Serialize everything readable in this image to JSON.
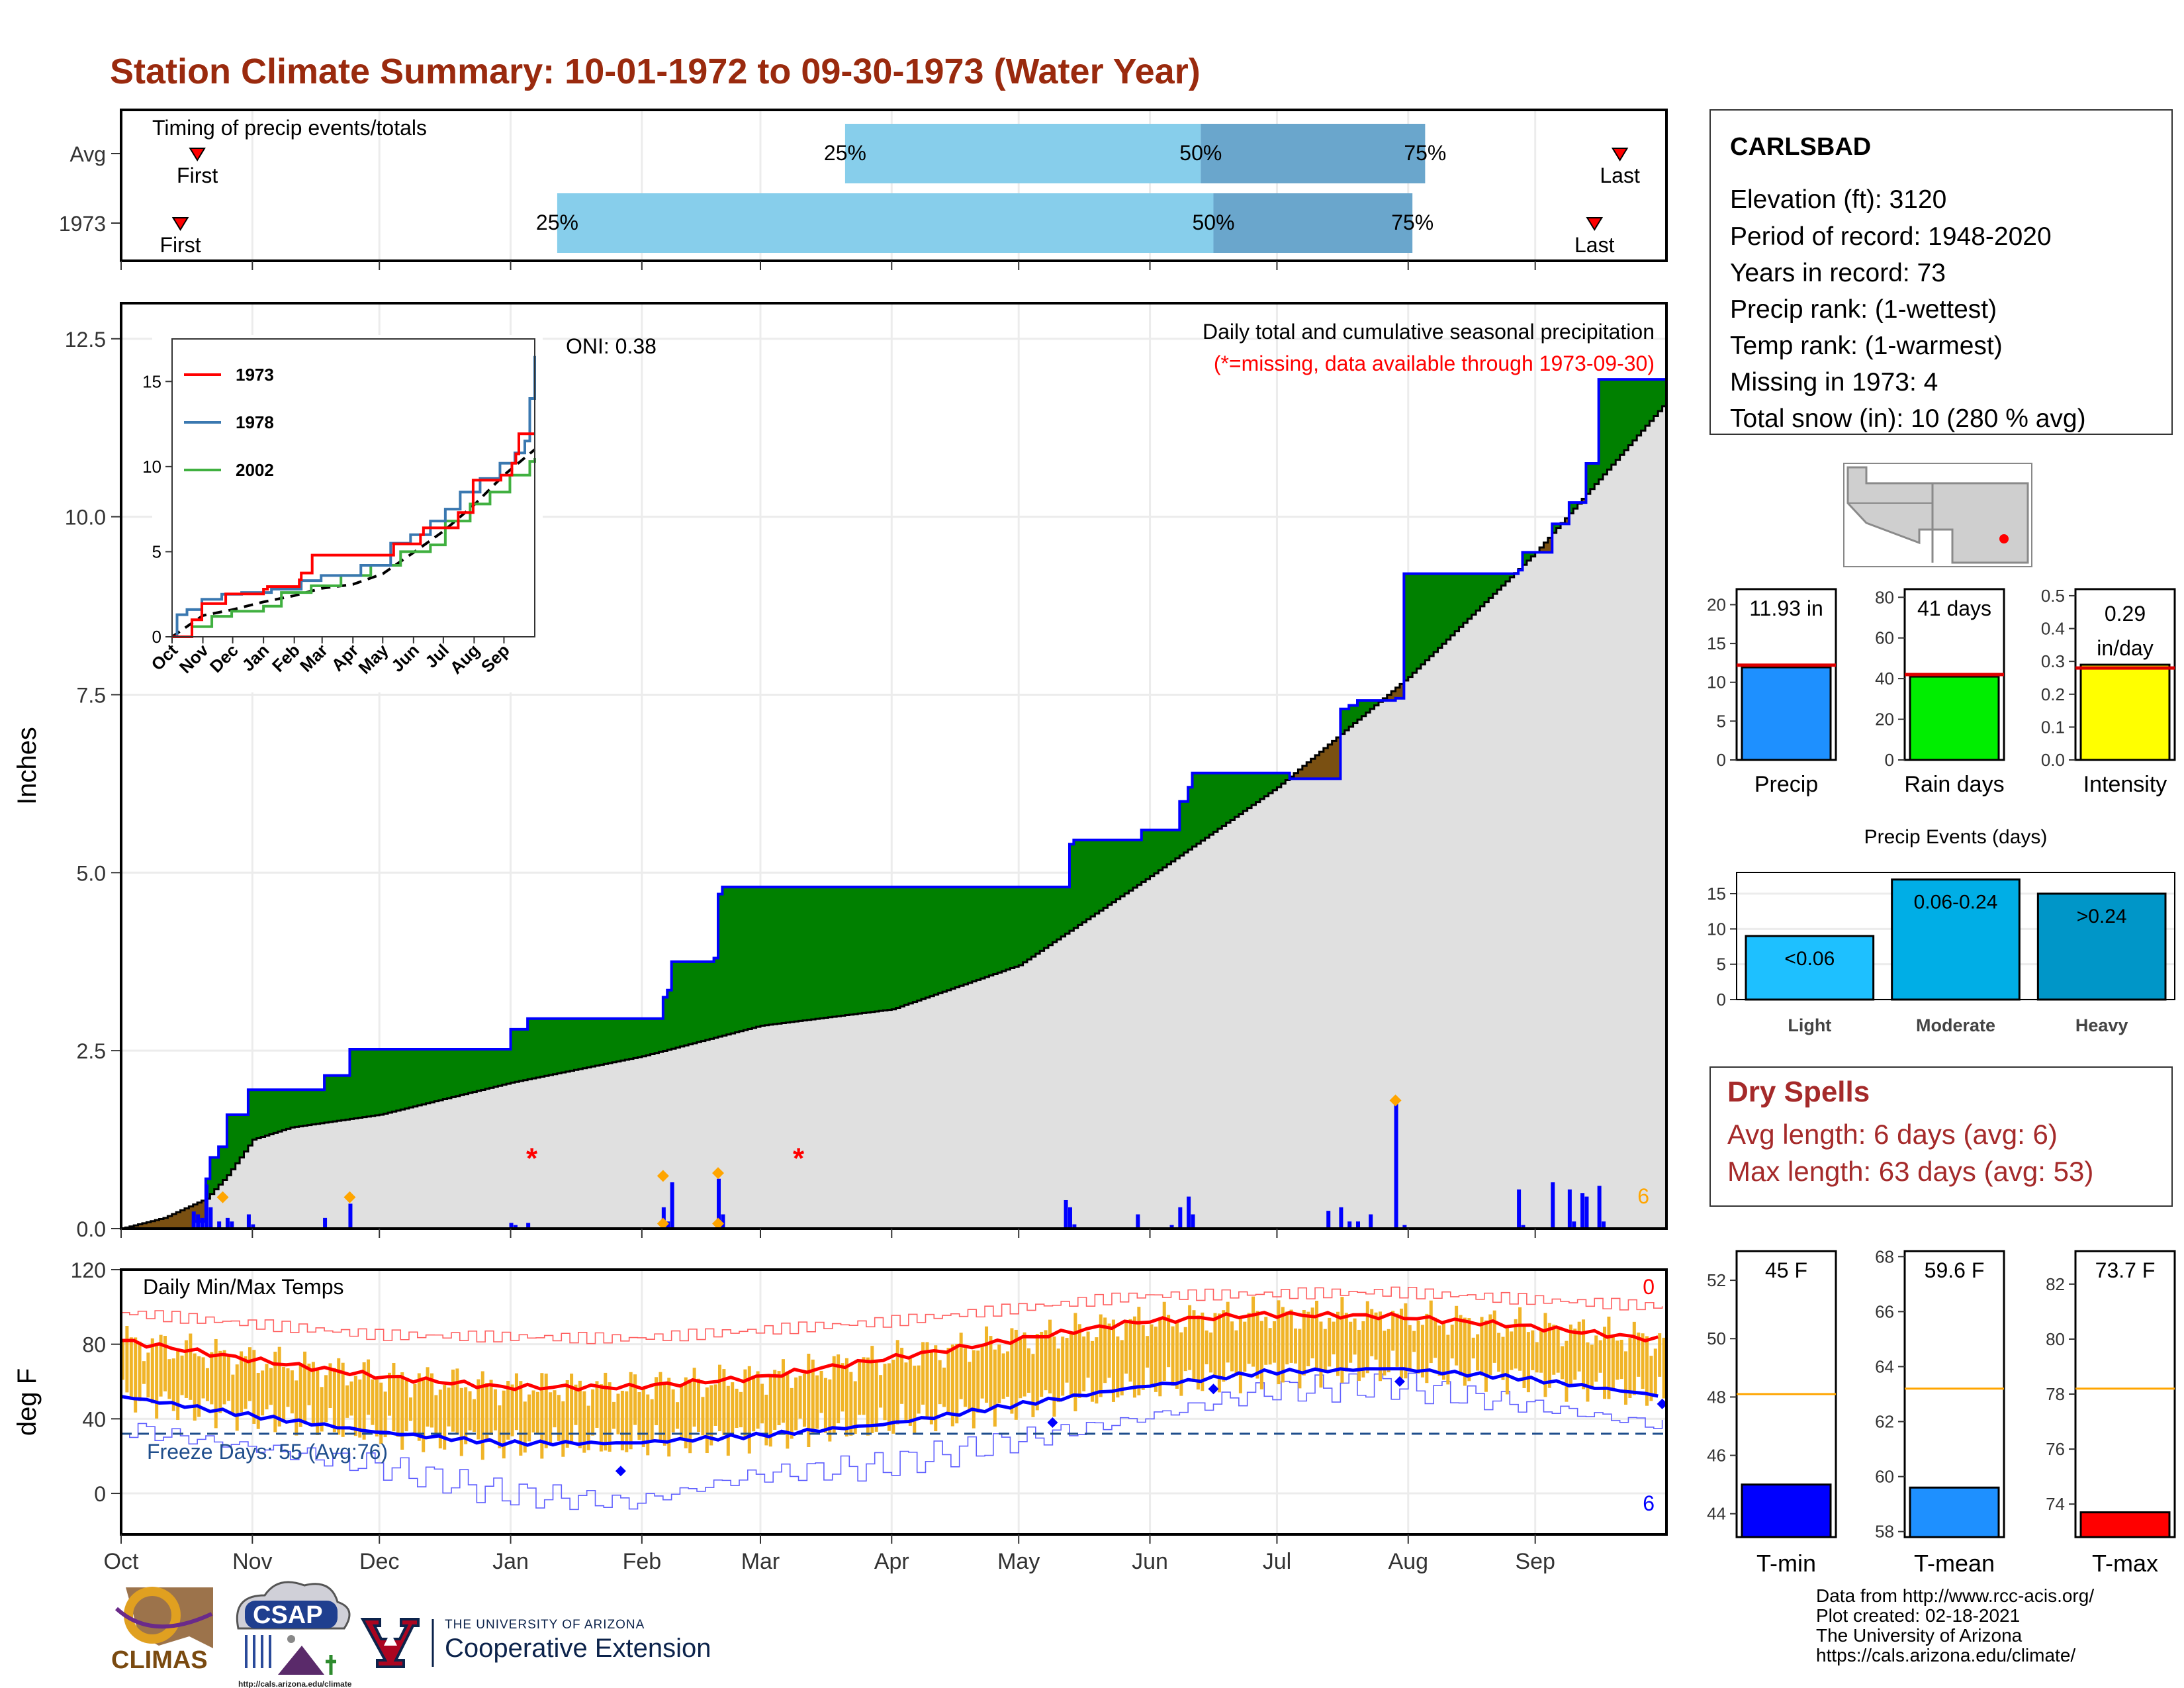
{
  "title": "Station Climate Summary: 10-01-1972 to 09-30-1973 (Water Year)",
  "colors": {
    "title": "#9a2a0e",
    "precip_green": "#008000",
    "precip_brown": "#7a5012",
    "cum_gray": "#e0e0e0",
    "blue_line": "#0000ff",
    "red_line": "#ff0000",
    "temp_bar": "#f0b428",
    "light_blue": "#87ceeb",
    "mid_blue": "#6aa6cc",
    "dry_red": "#a52a2a",
    "freeze_dash": "#1f4e8c"
  },
  "timing": {
    "label": "Timing of precip events/totals",
    "rows": [
      {
        "name": "Avg",
        "first": "First",
        "last": "Last",
        "p25": "25%",
        "p50": "50%",
        "p75": "75%",
        "first_day": 18,
        "q25_day": 171,
        "q50_day": 255,
        "q75_day": 308,
        "last_day": 354
      },
      {
        "name": "1973",
        "first": "First",
        "last": "Last",
        "p25": "25%",
        "p50": "50%",
        "p75": "75%",
        "first_day": 14,
        "q25_day": 103,
        "q50_day": 258,
        "q75_day": 305,
        "last_day": 348
      }
    ]
  },
  "precip_chart": {
    "ylabel": "Inches",
    "yticks": [
      "0.0",
      "2.5",
      "5.0",
      "7.5",
      "10.0",
      "12.5"
    ],
    "oni": "ONI: 0.38",
    "note1": "Daily total and cumulative seasonal precipitation",
    "note2": "(*=missing, data available through 1973-09-30)",
    "missing_count": "6",
    "ymax": 13,
    "missing_marks": [
      {
        "day": 97,
        "value": 1.0
      },
      {
        "day": 160,
        "value": 1.0
      }
    ],
    "cumulative_1973": [
      [
        0,
        0
      ],
      [
        17,
        0.1
      ],
      [
        20,
        0.7
      ],
      [
        21,
        1.0
      ],
      [
        23,
        1.15
      ],
      [
        25,
        1.6
      ],
      [
        30,
        1.95
      ],
      [
        48,
        2.15
      ],
      [
        54,
        2.52
      ],
      [
        84,
        2.52
      ],
      [
        92,
        2.8
      ],
      [
        96,
        2.95
      ],
      [
        122,
        2.95
      ],
      [
        128,
        3.25
      ],
      [
        129,
        3.35
      ],
      [
        130,
        3.75
      ],
      [
        140,
        3.8
      ],
      [
        141,
        4.7
      ],
      [
        142,
        4.8
      ],
      [
        223,
        4.8
      ],
      [
        224,
        5.4
      ],
      [
        225,
        5.46
      ],
      [
        240,
        5.46
      ],
      [
        241,
        5.6
      ],
      [
        248,
        5.6
      ],
      [
        250,
        6.0
      ],
      [
        252,
        6.2
      ],
      [
        253,
        6.4
      ],
      [
        275,
        6.4
      ],
      [
        276,
        6.32
      ],
      [
        285,
        6.32
      ],
      [
        288,
        7.3
      ],
      [
        290,
        7.35
      ],
      [
        292,
        7.42
      ],
      [
        301,
        7.45
      ],
      [
        303,
        9.2
      ],
      [
        330,
        9.25
      ],
      [
        331,
        9.5
      ],
      [
        338,
        9.9
      ],
      [
        342,
        10.2
      ],
      [
        346,
        10.75
      ],
      [
        349,
        11.93
      ],
      [
        365,
        11.93
      ]
    ],
    "average_cum": [
      [
        0,
        0
      ],
      [
        10,
        0.15
      ],
      [
        20,
        0.42
      ],
      [
        25,
        0.75
      ],
      [
        31,
        1.25
      ],
      [
        40,
        1.42
      ],
      [
        61,
        1.6
      ],
      [
        92,
        2.05
      ],
      [
        123,
        2.42
      ],
      [
        151,
        2.85
      ],
      [
        182,
        3.08
      ],
      [
        212,
        3.7
      ],
      [
        243,
        4.95
      ],
      [
        273,
        6.2
      ],
      [
        304,
        7.75
      ],
      [
        334,
        9.5
      ],
      [
        365,
        11.62
      ]
    ],
    "daily_bars": [
      [
        17,
        0.24
      ],
      [
        18,
        0.2
      ],
      [
        19,
        0.15
      ],
      [
        20,
        0.62
      ],
      [
        21,
        0.3
      ],
      [
        23,
        0.1
      ],
      [
        25,
        0.15
      ],
      [
        26,
        0.1
      ],
      [
        30,
        0.2
      ],
      [
        31,
        0.06
      ],
      [
        48,
        0.15
      ],
      [
        54,
        0.35
      ],
      [
        92,
        0.08
      ],
      [
        93,
        0.05
      ],
      [
        96,
        0.08
      ],
      [
        128,
        0.3
      ],
      [
        129,
        0.1
      ],
      [
        130,
        0.65
      ],
      [
        141,
        0.7
      ],
      [
        142,
        0.2
      ],
      [
        223,
        0.4
      ],
      [
        224,
        0.3
      ],
      [
        225,
        0.06
      ],
      [
        240,
        0.2
      ],
      [
        248,
        0.05
      ],
      [
        250,
        0.3
      ],
      [
        252,
        0.45
      ],
      [
        253,
        0.2
      ],
      [
        285,
        0.25
      ],
      [
        288,
        0.3
      ],
      [
        290,
        0.1
      ],
      [
        292,
        0.1
      ],
      [
        295,
        0.2
      ],
      [
        301,
        1.8
      ],
      [
        303,
        0.05
      ],
      [
        330,
        0.55
      ],
      [
        331,
        0.05
      ],
      [
        338,
        0.65
      ],
      [
        342,
        0.55
      ],
      [
        343,
        0.1
      ],
      [
        345,
        0.5
      ],
      [
        346,
        0.45
      ],
      [
        349,
        0.6
      ],
      [
        350,
        0.1
      ]
    ],
    "extreme_marks": [
      [
        24,
        0.44
      ],
      [
        54,
        0.44
      ],
      [
        128,
        0.74
      ],
      [
        128,
        0.07
      ],
      [
        141,
        0.78
      ],
      [
        141,
        0.07
      ],
      [
        301,
        1.8
      ]
    ]
  },
  "inset": {
    "yticks": [
      "0",
      "5",
      "10",
      "15"
    ],
    "xticks": [
      "Oct",
      "Nov",
      "Dec",
      "Jan",
      "Feb",
      "Mar",
      "Apr",
      "May",
      "Jun",
      "Jul",
      "Aug",
      "Sep"
    ],
    "ymax": 17.5,
    "legend": [
      {
        "label": "1973",
        "color": "#ff0000"
      },
      {
        "label": "1978",
        "color": "#3a78b0"
      },
      {
        "label": "2002",
        "color": "#40b040"
      }
    ],
    "series": {
      "1973": [
        [
          0,
          0
        ],
        [
          20,
          1.0
        ],
        [
          30,
          1.95
        ],
        [
          54,
          2.52
        ],
        [
          92,
          2.8
        ],
        [
          96,
          2.95
        ],
        [
          128,
          3.35
        ],
        [
          130,
          3.75
        ],
        [
          141,
          4.8
        ],
        [
          223,
          5.46
        ],
        [
          250,
          6.0
        ],
        [
          253,
          6.4
        ],
        [
          288,
          7.3
        ],
        [
          303,
          9.2
        ],
        [
          331,
          9.5
        ],
        [
          342,
          10.2
        ],
        [
          346,
          10.75
        ],
        [
          349,
          11.93
        ],
        [
          365,
          11.93
        ]
      ],
      "1978": [
        [
          0,
          0
        ],
        [
          5,
          1.3
        ],
        [
          15,
          1.6
        ],
        [
          30,
          2.2
        ],
        [
          50,
          2.5
        ],
        [
          70,
          2.6
        ],
        [
          100,
          2.8
        ],
        [
          130,
          3.3
        ],
        [
          150,
          3.6
        ],
        [
          190,
          4.2
        ],
        [
          220,
          5.5
        ],
        [
          240,
          6.0
        ],
        [
          260,
          6.8
        ],
        [
          275,
          7.5
        ],
        [
          290,
          8.5
        ],
        [
          310,
          9.3
        ],
        [
          330,
          10.2
        ],
        [
          345,
          10.8
        ],
        [
          355,
          11.5
        ],
        [
          360,
          14.0
        ],
        [
          365,
          16.5
        ]
      ],
      "2002": [
        [
          0,
          0
        ],
        [
          20,
          0.6
        ],
        [
          40,
          1.2
        ],
        [
          60,
          1.5
        ],
        [
          92,
          1.8
        ],
        [
          110,
          2.6
        ],
        [
          140,
          3.0
        ],
        [
          170,
          3.6
        ],
        [
          200,
          4.2
        ],
        [
          230,
          5.0
        ],
        [
          260,
          5.4
        ],
        [
          275,
          6.8
        ],
        [
          300,
          7.8
        ],
        [
          320,
          8.5
        ],
        [
          340,
          9.5
        ],
        [
          360,
          10.3
        ],
        [
          365,
          10.5
        ]
      ],
      "avg": [
        [
          0,
          0
        ],
        [
          31,
          1.25
        ],
        [
          61,
          1.6
        ],
        [
          92,
          2.05
        ],
        [
          123,
          2.42
        ],
        [
          151,
          2.85
        ],
        [
          182,
          3.08
        ],
        [
          212,
          3.7
        ],
        [
          243,
          4.95
        ],
        [
          273,
          6.2
        ],
        [
          304,
          7.75
        ],
        [
          334,
          9.5
        ],
        [
          365,
          11.0
        ]
      ]
    }
  },
  "temp_chart": {
    "ylabel": "deg F",
    "label": "Daily Min/Max Temps",
    "yticks": [
      "0",
      "40",
      "80",
      "120"
    ],
    "freeze_label": "Freeze Days: 55 (Avg:76)",
    "count_top": "0",
    "count_bottom": "6",
    "avg_max": [
      [
        0,
        82
      ],
      [
        30,
        72
      ],
      [
        60,
        63
      ],
      [
        90,
        57
      ],
      [
        120,
        57
      ],
      [
        150,
        62
      ],
      [
        180,
        72
      ],
      [
        210,
        82
      ],
      [
        240,
        92
      ],
      [
        270,
        96
      ],
      [
        300,
        95
      ],
      [
        330,
        90
      ],
      [
        365,
        82
      ]
    ],
    "avg_min": [
      [
        0,
        52
      ],
      [
        30,
        42
      ],
      [
        60,
        33
      ],
      [
        90,
        27
      ],
      [
        120,
        27
      ],
      [
        150,
        31
      ],
      [
        180,
        37
      ],
      [
        210,
        47
      ],
      [
        240,
        57
      ],
      [
        270,
        65
      ],
      [
        300,
        67
      ],
      [
        330,
        62
      ],
      [
        365,
        52
      ]
    ],
    "rec_max": [
      [
        0,
        97
      ],
      [
        60,
        85
      ],
      [
        120,
        83
      ],
      [
        180,
        92
      ],
      [
        240,
        106
      ],
      [
        300,
        108
      ],
      [
        365,
        100
      ]
    ],
    "rec_min": [
      [
        0,
        35
      ],
      [
        60,
        15
      ],
      [
        90,
        0
      ],
      [
        120,
        -5
      ],
      [
        150,
        10
      ],
      [
        180,
        15
      ],
      [
        210,
        28
      ],
      [
        240,
        40
      ],
      [
        270,
        55
      ],
      [
        300,
        58
      ],
      [
        330,
        48
      ],
      [
        365,
        36
      ]
    ],
    "low_marks": [
      [
        220,
        38
      ],
      [
        258,
        56
      ],
      [
        118,
        12
      ],
      [
        302,
        60
      ],
      [
        364,
        48
      ]
    ]
  },
  "months": [
    "Oct",
    "Nov",
    "Dec",
    "Jan",
    "Feb",
    "Mar",
    "Apr",
    "May",
    "Jun",
    "Jul",
    "Aug",
    "Sep"
  ],
  "info": {
    "station": "CARLSBAD",
    "lines": [
      "Elevation (ft): 3120",
      "Period of record: 1948-2020",
      "Years in record: 73",
      "Precip rank:  (1-wettest)",
      "Temp rank:  (1-warmest)",
      "Missing in 1973: 4",
      "Total snow (in): 10 (280 % avg)"
    ]
  },
  "small_bars": [
    {
      "label": "Precip",
      "value_text": "11.93 in",
      "value": 11.93,
      "avg": 12.2,
      "ymax": 22,
      "yticks": [
        "0",
        "5",
        "10",
        "15",
        "20"
      ],
      "ytick_values": [
        0,
        5,
        10,
        15,
        20
      ],
      "color": "#1e90ff"
    },
    {
      "label": "Rain days",
      "value_text": "41 days",
      "value": 41,
      "avg": 42,
      "ymax": 84,
      "yticks": [
        "0",
        "20",
        "40",
        "60",
        "80"
      ],
      "ytick_values": [
        0,
        20,
        40,
        60,
        80
      ],
      "color": "#00ee00"
    },
    {
      "label": "Intensity",
      "value_text1": "0.29",
      "value_text2": "in/day",
      "value": 0.29,
      "avg": 0.28,
      "ymax": 0.52,
      "yticks": [
        "0.0",
        "0.1",
        "0.2",
        "0.3",
        "0.4",
        "0.5"
      ],
      "ytick_values": [
        0,
        0.1,
        0.2,
        0.3,
        0.4,
        0.5
      ],
      "color": "#ffff00"
    }
  ],
  "events": {
    "title": "Precip Events (days)",
    "yticks": [
      "0",
      "5",
      "10",
      "15"
    ],
    "bars": [
      {
        "label": "Light",
        "range": "<0.06",
        "value": 9,
        "color": "#1ec0ff"
      },
      {
        "label": "Moderate",
        "range": "0.06-0.24",
        "value": 17,
        "color": "#00aee6"
      },
      {
        "label": "Heavy",
        "range": ">0.24",
        "value": 15,
        "color": "#0096c8"
      }
    ]
  },
  "dry_spells": {
    "title": "Dry Spells",
    "avg": "Avg length: 6 days (avg: 6)",
    "max": "Max length: 63 days (avg: 53)"
  },
  "temp_bars": [
    {
      "label": "T-min",
      "value_text": "45 F",
      "value": 45,
      "avg": 48.1,
      "ymin": 43.2,
      "ymax": 53,
      "yticks": [
        "44",
        "46",
        "48",
        "50",
        "52"
      ],
      "ytick_values": [
        44,
        46,
        48,
        50,
        52
      ],
      "color": "#0000ff"
    },
    {
      "label": "T-mean",
      "value_text": "59.6 F",
      "value": 59.6,
      "avg": 63.2,
      "ymin": 57.8,
      "ymax": 68.2,
      "yticks": [
        "58",
        "60",
        "62",
        "64",
        "66",
        "68"
      ],
      "ytick_values": [
        58,
        60,
        62,
        64,
        66,
        68
      ],
      "color": "#1e90ff"
    },
    {
      "label": "T-max",
      "value_text": "73.7 F",
      "value": 73.7,
      "avg": 78.2,
      "ymin": 72.8,
      "ymax": 83.2,
      "yticks": [
        "74",
        "76",
        "78",
        "80",
        "82"
      ],
      "ytick_values": [
        74,
        76,
        78,
        80,
        82
      ],
      "color": "#ff0000"
    }
  ],
  "footer": {
    "lines": [
      "Data from http://www.rcc-acis.org/",
      "Plot created: 02-18-2021",
      "The University of Arizona",
      "https://cals.arizona.edu/climate/"
    ],
    "climas": "CLIMAS",
    "csap": "CSAP",
    "csap_url": "http://cals.arizona.edu/climate",
    "ua_small": "THE UNIVERSITY OF ARIZONA",
    "ua_big": "Cooperative Extension"
  }
}
